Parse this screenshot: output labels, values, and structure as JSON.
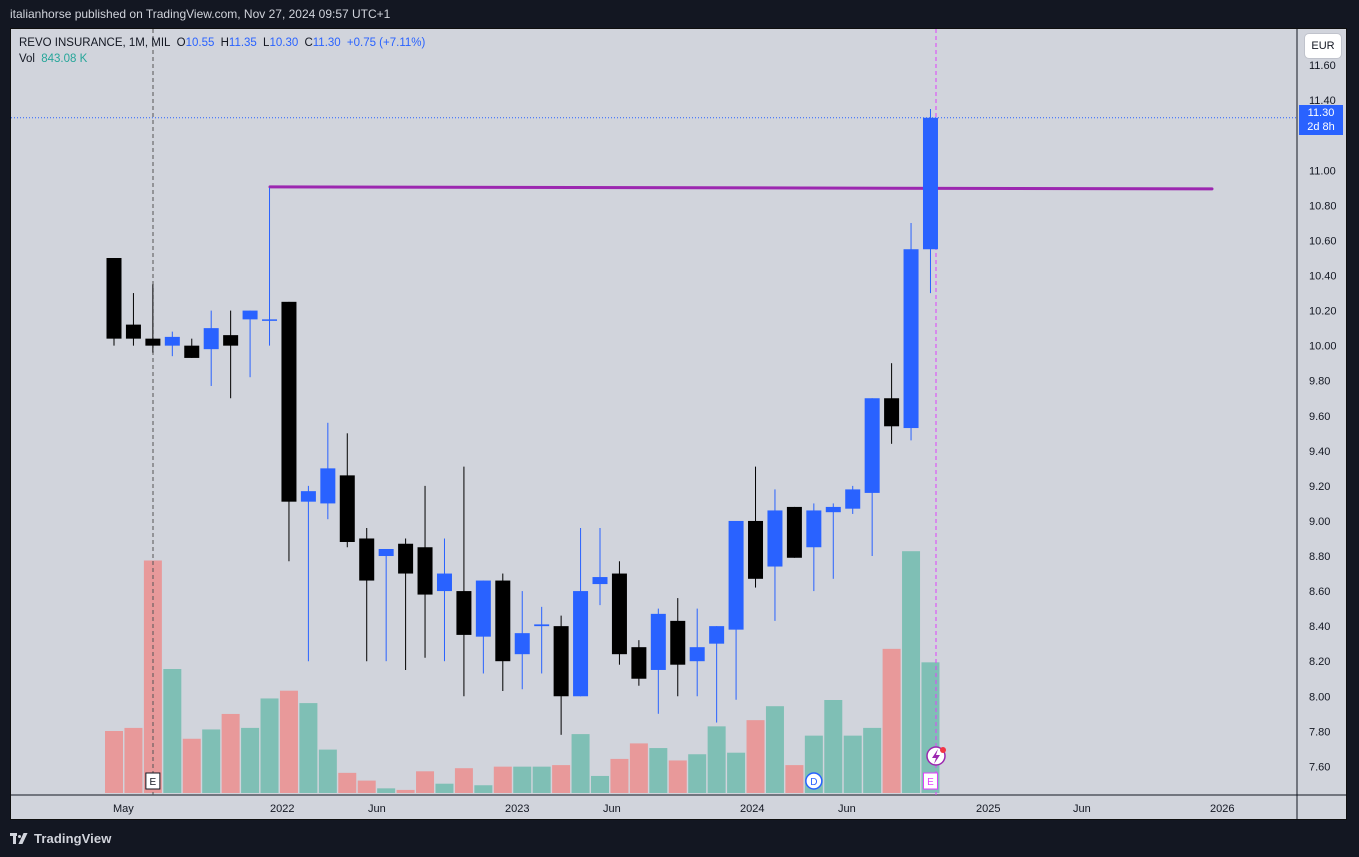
{
  "header": {
    "published_text": "italianhorse published on TradingView.com, Nov 27, 2024 09:57 UTC+1"
  },
  "legend": {
    "symbol": "REVO INSURANCE, 1M, MIL",
    "o_label": "O",
    "o": "10.55",
    "h_label": "H",
    "h": "11.35",
    "l_label": "L",
    "l": "10.30",
    "c_label": "C",
    "c": "11.30",
    "change": "+0.75 (+7.11%)",
    "vol_label": "Vol",
    "vol": "843.08 K"
  },
  "currency_button": "EUR",
  "last_price": {
    "price": "11.30",
    "countdown": "2d 8h"
  },
  "footer": {
    "brand": "TradingView"
  },
  "colors": {
    "up": "#2962ff",
    "down": "#000000",
    "vol_up": "#7fbfb5",
    "vol_down": "#e8999a",
    "resistance": "#9c27b0",
    "background": "#d1d4dc",
    "frame": "#131722"
  },
  "chart_data": {
    "type": "candlestick",
    "title": "REVO INSURANCE, 1M, MIL",
    "ylim": [
      7.4,
      11.6
    ],
    "y_ticks": [
      7.6,
      7.8,
      8.0,
      8.2,
      8.4,
      8.6,
      8.8,
      9.0,
      9.2,
      9.4,
      9.6,
      9.8,
      10.0,
      10.2,
      10.4,
      10.6,
      10.8,
      11.0,
      11.4
    ],
    "y_tick_top_partial": "11.60",
    "x_labels": [
      "May",
      "2022",
      "Jun",
      "2023",
      "Jun",
      "2024",
      "Jun",
      "2025",
      "Jun",
      "2026"
    ],
    "grid": false,
    "series": [
      {
        "name": "REVO INSURANCE",
        "candles": [
          {
            "o": 10.5,
            "h": 10.5,
            "l": 10.0,
            "c": 10.04,
            "v": 0.4
          },
          {
            "o": 10.12,
            "h": 10.3,
            "l": 10.0,
            "c": 10.04,
            "v": 0.42
          },
          {
            "o": 10.04,
            "h": 10.35,
            "l": 9.96,
            "c": 10.0,
            "v": 1.5
          },
          {
            "o": 10.0,
            "h": 10.08,
            "l": 9.94,
            "c": 10.05,
            "v": 0.8
          },
          {
            "o": 10.0,
            "h": 10.04,
            "l": 9.93,
            "c": 9.93,
            "v": 0.35
          },
          {
            "o": 9.98,
            "h": 10.2,
            "l": 9.77,
            "c": 10.1,
            "v": 0.41
          },
          {
            "o": 10.06,
            "h": 10.2,
            "l": 9.7,
            "c": 10.0,
            "v": 0.51
          },
          {
            "o": 10.15,
            "h": 10.2,
            "l": 9.82,
            "c": 10.2,
            "v": 0.42
          },
          {
            "o": 10.15,
            "h": 10.9,
            "l": 10.0,
            "c": 10.15,
            "v": 0.61
          },
          {
            "o": 10.25,
            "h": 10.25,
            "l": 8.77,
            "c": 9.11,
            "v": 0.66
          },
          {
            "o": 9.11,
            "h": 9.2,
            "l": 8.2,
            "c": 9.17,
            "v": 0.58
          },
          {
            "o": 9.1,
            "h": 9.56,
            "l": 9.01,
            "c": 9.3,
            "v": 0.28
          },
          {
            "o": 9.26,
            "h": 9.5,
            "l": 8.85,
            "c": 8.88,
            "v": 0.13
          },
          {
            "o": 8.9,
            "h": 8.96,
            "l": 8.2,
            "c": 8.66,
            "v": 0.08
          },
          {
            "o": 8.8,
            "h": 8.84,
            "l": 8.2,
            "c": 8.84,
            "v": 0.03
          },
          {
            "o": 8.87,
            "h": 8.9,
            "l": 8.15,
            "c": 8.7,
            "v": 0.02
          },
          {
            "o": 8.85,
            "h": 9.2,
            "l": 8.22,
            "c": 8.58,
            "v": 0.14
          },
          {
            "o": 8.6,
            "h": 8.9,
            "l": 8.2,
            "c": 8.7,
            "v": 0.06
          },
          {
            "o": 8.6,
            "h": 9.31,
            "l": 8.0,
            "c": 8.35,
            "v": 0.16
          },
          {
            "o": 8.34,
            "h": 8.66,
            "l": 8.13,
            "c": 8.66,
            "v": 0.05
          },
          {
            "o": 8.66,
            "h": 8.7,
            "l": 8.03,
            "c": 8.2,
            "v": 0.17
          },
          {
            "o": 8.24,
            "h": 8.6,
            "l": 8.04,
            "c": 8.36,
            "v": 0.17
          },
          {
            "o": 8.4,
            "h": 8.51,
            "l": 8.13,
            "c": 8.41,
            "v": 0.17
          },
          {
            "o": 8.4,
            "h": 8.46,
            "l": 7.78,
            "c": 8.0,
            "v": 0.18
          },
          {
            "o": 8.0,
            "h": 8.96,
            "l": 8.0,
            "c": 8.6,
            "v": 0.38
          },
          {
            "o": 8.64,
            "h": 8.96,
            "l": 8.52,
            "c": 8.68,
            "v": 0.11
          },
          {
            "o": 8.7,
            "h": 8.77,
            "l": 8.18,
            "c": 8.24,
            "v": 0.22
          },
          {
            "o": 8.28,
            "h": 8.32,
            "l": 8.06,
            "c": 8.1,
            "v": 0.32
          },
          {
            "o": 8.15,
            "h": 8.5,
            "l": 7.9,
            "c": 8.47,
            "v": 0.29
          },
          {
            "o": 8.43,
            "h": 8.56,
            "l": 8.0,
            "c": 8.18,
            "v": 0.21
          },
          {
            "o": 8.2,
            "h": 8.5,
            "l": 8.0,
            "c": 8.28,
            "v": 0.25
          },
          {
            "o": 8.3,
            "h": 8.4,
            "l": 7.85,
            "c": 8.4,
            "v": 0.43
          },
          {
            "o": 8.38,
            "h": 9.0,
            "l": 7.98,
            "c": 9.0,
            "v": 0.26
          },
          {
            "o": 9.0,
            "h": 9.31,
            "l": 8.62,
            "c": 8.67,
            "v": 0.47
          },
          {
            "o": 8.74,
            "h": 9.18,
            "l": 8.43,
            "c": 9.06,
            "v": 0.56
          },
          {
            "o": 9.08,
            "h": 9.08,
            "l": 8.79,
            "c": 8.79,
            "v": 0.18
          },
          {
            "o": 8.85,
            "h": 9.1,
            "l": 8.6,
            "c": 9.06,
            "v": 0.37
          },
          {
            "o": 9.05,
            "h": 9.1,
            "l": 8.67,
            "c": 9.08,
            "v": 0.6
          },
          {
            "o": 9.07,
            "h": 9.2,
            "l": 9.04,
            "c": 9.18,
            "v": 0.37
          },
          {
            "o": 9.16,
            "h": 9.7,
            "l": 8.8,
            "c": 9.7,
            "v": 0.42
          },
          {
            "o": 9.7,
            "h": 9.9,
            "l": 9.44,
            "c": 9.54,
            "v": 0.93
          },
          {
            "o": 9.53,
            "h": 10.7,
            "l": 9.46,
            "c": 10.55,
            "v": 1.56
          },
          {
            "o": 10.55,
            "h": 11.35,
            "l": 10.3,
            "c": 11.3,
            "v": 0.843
          }
        ]
      }
    ],
    "volume_label": "Vol",
    "volume_unit": "M",
    "resistance_level": 10.9,
    "markers": [
      {
        "candle": 2,
        "text": "E",
        "kind": "earnings"
      },
      {
        "candle": 36,
        "text": "D",
        "kind": "dividend"
      },
      {
        "candle": 42,
        "text": "E",
        "kind": "earnings"
      }
    ]
  }
}
